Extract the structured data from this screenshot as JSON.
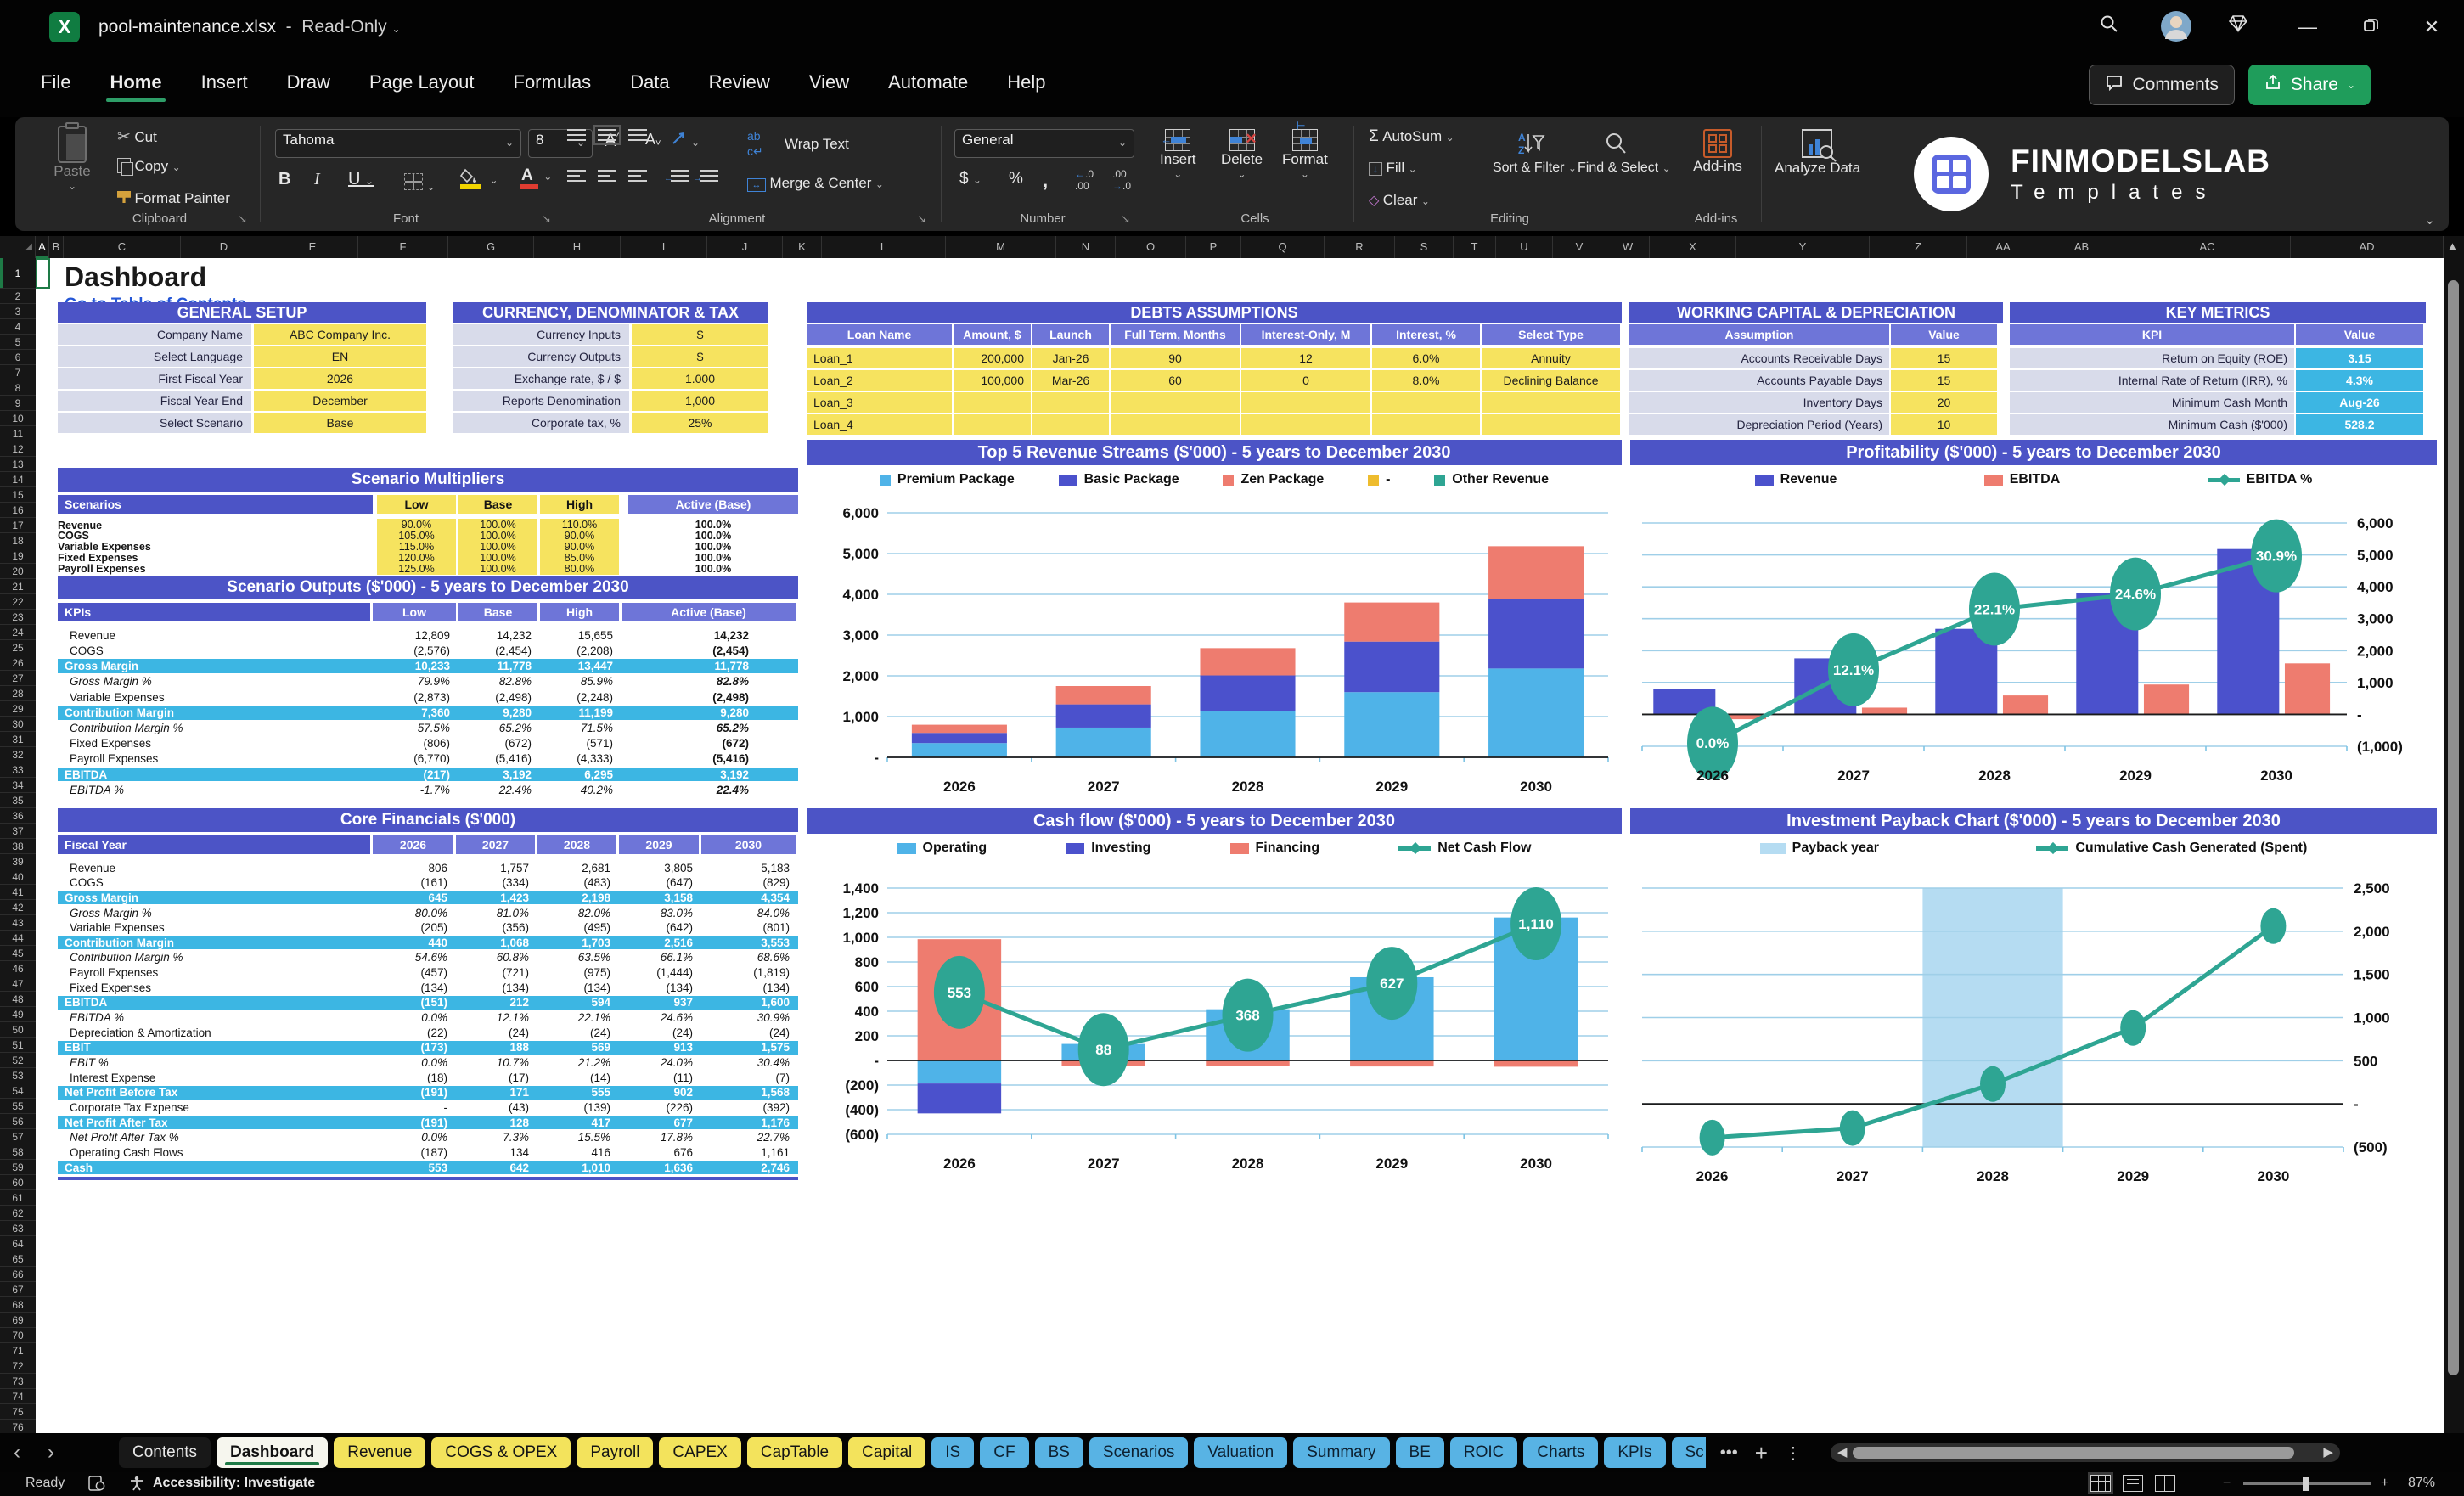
{
  "titlebar": {
    "filename": "pool-maintenance.xlsx",
    "separator": "-",
    "mode": "Read-Only"
  },
  "menubar": {
    "items": [
      "File",
      "Home",
      "Insert",
      "Draw",
      "Page Layout",
      "Formulas",
      "Data",
      "Review",
      "View",
      "Automate",
      "Help"
    ],
    "active": "Home",
    "comments_label": "Comments",
    "share_label": "Share"
  },
  "ribbon": {
    "clipboard": {
      "label": "Clipboard",
      "paste": "Paste",
      "cut": "Cut",
      "copy": "Copy",
      "format_painter": "Format Painter"
    },
    "font": {
      "label": "Font",
      "font_name": "Tahoma",
      "font_size": "8"
    },
    "alignment": {
      "label": "Alignment",
      "wrap_text": "Wrap Text",
      "merge_center": "Merge & Center"
    },
    "number": {
      "label": "Number",
      "format": "General"
    },
    "cells": {
      "label": "Cells",
      "insert": "Insert",
      "delete": "Delete",
      "format": "Format"
    },
    "editing": {
      "label": "Editing",
      "autosum": "AutoSum",
      "fill": "Fill",
      "clear": "Clear",
      "sort_filter": "Sort & Filter",
      "find_select": "Find & Select"
    },
    "addins": {
      "label": "Add-ins",
      "addins": "Add-ins",
      "analyze": "Analyze Data"
    },
    "logo": {
      "line1": "FINMODELSLAB",
      "line2": "Templates"
    }
  },
  "grid": {
    "columns": [
      "A",
      "B",
      "C",
      "D",
      "E",
      "F",
      "G",
      "H",
      "I",
      "J",
      "K",
      "L",
      "M",
      "N",
      "O",
      "P",
      "Q",
      "R",
      "S",
      "T",
      "U",
      "V",
      "W",
      "X",
      "Y",
      "Z",
      "AA",
      "AB",
      "AC",
      "AD"
    ],
    "row_count": 76,
    "sheet_title": "Dashboard",
    "toc_link": "Go to Table of Contents"
  },
  "tables": {
    "general_setup": {
      "title": "GENERAL SETUP",
      "rows": [
        [
          "Company Name",
          "ABC Company Inc."
        ],
        [
          "Select Language",
          "EN"
        ],
        [
          "First Fiscal Year",
          "2026"
        ],
        [
          "Fiscal Year End",
          "December"
        ],
        [
          "Select Scenario",
          "Base"
        ]
      ]
    },
    "currency_tax": {
      "title": "CURRENCY, DENOMINATOR & TAX",
      "rows": [
        [
          "Currency Inputs",
          "$"
        ],
        [
          "Currency Outputs",
          "$"
        ],
        [
          "Exchange rate, $ / $",
          "1.000"
        ],
        [
          "Reports Denomination",
          "1,000"
        ],
        [
          "Corporate tax, %",
          "25%"
        ]
      ]
    },
    "debts": {
      "title": "DEBTS ASSUMPTIONS",
      "headers": [
        "Loan Name",
        "Amount, $",
        "Launch",
        "Full Term, Months",
        "Interest-Only, M",
        "Interest, %",
        "Select Type"
      ],
      "rows": [
        [
          "Loan_1",
          "200,000",
          "Jan-26",
          "90",
          "12",
          "6.0%",
          "Annuity"
        ],
        [
          "Loan_2",
          "100,000",
          "Mar-26",
          "60",
          "0",
          "8.0%",
          "Declining Balance"
        ],
        [
          "Loan_3",
          "",
          "",
          "",
          "",
          "",
          ""
        ],
        [
          "Loan_4",
          "",
          "",
          "",
          "",
          "",
          ""
        ]
      ]
    },
    "working_capital": {
      "title": "WORKING CAPITAL & DEPRECIATION",
      "headers": [
        "Assumption",
        "Value"
      ],
      "rows": [
        [
          "Accounts Receivable Days",
          "15"
        ],
        [
          "Accounts Payable Days",
          "15"
        ],
        [
          "Inventory Days",
          "20"
        ],
        [
          "Depreciation Period (Years)",
          "10"
        ]
      ]
    },
    "key_metrics": {
      "title": "KEY METRICS",
      "headers": [
        "KPI",
        "Value"
      ],
      "rows": [
        [
          "Return on Equity (ROE)",
          "3.15"
        ],
        [
          "Internal Rate of Return (IRR), %",
          "4.3%"
        ],
        [
          "Minimum Cash Month",
          "Aug-26"
        ],
        [
          "Minimum Cash ($'000)",
          "528.2"
        ]
      ]
    },
    "scenario_multipliers": {
      "title": "Scenario Multipliers",
      "headers": [
        "Scenarios",
        "Low",
        "Base",
        "High",
        "Active (Base)"
      ],
      "rows": [
        [
          "Revenue",
          "90.0%",
          "100.0%",
          "110.0%",
          "100.0%"
        ],
        [
          "COGS",
          "105.0%",
          "100.0%",
          "90.0%",
          "100.0%"
        ],
        [
          "Variable Expenses",
          "115.0%",
          "100.0%",
          "90.0%",
          "100.0%"
        ],
        [
          "Fixed Expenses",
          "120.0%",
          "100.0%",
          "85.0%",
          "100.0%"
        ],
        [
          "Payroll Expenses",
          "125.0%",
          "100.0%",
          "80.0%",
          "100.0%"
        ]
      ]
    },
    "scenario_outputs": {
      "title": "Scenario Outputs ($'000) - 5 years to December 2030",
      "headers": [
        "KPIs",
        "Low",
        "Base",
        "High",
        "Active (Base)"
      ],
      "rows": [
        {
          "label": "Revenue",
          "style": "normal",
          "values": [
            "12,809",
            "14,232",
            "15,655",
            "14,232"
          ]
        },
        {
          "label": "COGS",
          "style": "normal",
          "values": [
            "(2,576)",
            "(2,454)",
            "(2,208)",
            "(2,454)"
          ]
        },
        {
          "label": "Gross Margin",
          "style": "highlight",
          "values": [
            "10,233",
            "11,778",
            "13,447",
            "11,778"
          ]
        },
        {
          "label": "Gross Margin %",
          "style": "pct",
          "values": [
            "79.9%",
            "82.8%",
            "85.9%",
            "82.8%"
          ]
        },
        {
          "label": "Variable Expenses",
          "style": "normal",
          "values": [
            "(2,873)",
            "(2,498)",
            "(2,248)",
            "(2,498)"
          ]
        },
        {
          "label": "Contribution Margin",
          "style": "highlight",
          "values": [
            "7,360",
            "9,280",
            "11,199",
            "9,280"
          ]
        },
        {
          "label": "Contribution Margin %",
          "style": "pct",
          "values": [
            "57.5%",
            "65.2%",
            "71.5%",
            "65.2%"
          ]
        },
        {
          "label": "Fixed Expenses",
          "style": "normal",
          "values": [
            "(806)",
            "(672)",
            "(571)",
            "(672)"
          ]
        },
        {
          "label": "Payroll Expenses",
          "style": "normal",
          "values": [
            "(6,770)",
            "(5,416)",
            "(4,333)",
            "(5,416)"
          ]
        },
        {
          "label": "EBITDA",
          "style": "highlight",
          "values": [
            "(217)",
            "3,192",
            "6,295",
            "3,192"
          ]
        },
        {
          "label": "EBITDA %",
          "style": "pct",
          "values": [
            "-1.7%",
            "22.4%",
            "40.2%",
            "22.4%"
          ]
        }
      ]
    },
    "core_financials": {
      "title": "Core Financials ($'000)",
      "headers": [
        "Fiscal Year",
        "2026",
        "2027",
        "2028",
        "2029",
        "2030"
      ],
      "rows": [
        {
          "label": "Revenue",
          "style": "normal",
          "values": [
            "806",
            "1,757",
            "2,681",
            "3,805",
            "5,183"
          ]
        },
        {
          "label": "COGS",
          "style": "normal",
          "values": [
            "(161)",
            "(334)",
            "(483)",
            "(647)",
            "(829)"
          ]
        },
        {
          "label": "Gross Margin",
          "style": "highlight",
          "values": [
            "645",
            "1,423",
            "2,198",
            "3,158",
            "4,354"
          ]
        },
        {
          "label": "Gross Margin %",
          "style": "pct",
          "values": [
            "80.0%",
            "81.0%",
            "82.0%",
            "83.0%",
            "84.0%"
          ]
        },
        {
          "label": "Variable Expenses",
          "style": "normal",
          "values": [
            "(205)",
            "(356)",
            "(495)",
            "(642)",
            "(801)"
          ]
        },
        {
          "label": "Contribution Margin",
          "style": "highlight",
          "values": [
            "440",
            "1,068",
            "1,703",
            "2,516",
            "3,553"
          ]
        },
        {
          "label": "Contribution Margin %",
          "style": "pct",
          "values": [
            "54.6%",
            "60.8%",
            "63.5%",
            "66.1%",
            "68.6%"
          ]
        },
        {
          "label": "Payroll Expenses",
          "style": "normal",
          "values": [
            "(457)",
            "(721)",
            "(975)",
            "(1,444)",
            "(1,819)"
          ]
        },
        {
          "label": "Fixed Expenses",
          "style": "normal",
          "values": [
            "(134)",
            "(134)",
            "(134)",
            "(134)",
            "(134)"
          ]
        },
        {
          "label": "EBITDA",
          "style": "highlight",
          "values": [
            "(151)",
            "212",
            "594",
            "937",
            "1,600"
          ]
        },
        {
          "label": "EBITDA %",
          "style": "pct",
          "values": [
            "0.0%",
            "12.1%",
            "22.1%",
            "24.6%",
            "30.9%"
          ]
        },
        {
          "label": "Depreciation & Amortization",
          "style": "normal",
          "values": [
            "(22)",
            "(24)",
            "(24)",
            "(24)",
            "(24)"
          ]
        },
        {
          "label": "EBIT",
          "style": "highlight",
          "values": [
            "(173)",
            "188",
            "569",
            "913",
            "1,575"
          ]
        },
        {
          "label": "EBIT %",
          "style": "pct",
          "values": [
            "0.0%",
            "10.7%",
            "21.2%",
            "24.0%",
            "30.4%"
          ]
        },
        {
          "label": "Interest Expense",
          "style": "normal",
          "values": [
            "(18)",
            "(17)",
            "(14)",
            "(11)",
            "(7)"
          ]
        },
        {
          "label": "Net Profit Before Tax",
          "style": "highlight",
          "values": [
            "(191)",
            "171",
            "555",
            "902",
            "1,568"
          ]
        },
        {
          "label": "Corporate Tax Expense",
          "style": "normal",
          "values": [
            "-",
            "(43)",
            "(139)",
            "(226)",
            "(392)"
          ]
        },
        {
          "label": "Net Profit After Tax",
          "style": "highlight",
          "values": [
            "(191)",
            "128",
            "417",
            "677",
            "1,176"
          ]
        },
        {
          "label": "Net Profit After Tax %",
          "style": "pct",
          "values": [
            "0.0%",
            "7.3%",
            "15.5%",
            "17.8%",
            "22.7%"
          ]
        },
        {
          "label": "Operating Cash Flows",
          "style": "normal",
          "values": [
            "(187)",
            "134",
            "416",
            "676",
            "1,161"
          ]
        },
        {
          "label": "Cash",
          "style": "highlight",
          "values": [
            "553",
            "642",
            "1,010",
            "1,636",
            "2,746"
          ]
        }
      ]
    }
  },
  "chart_data": [
    {
      "type": "bar",
      "title": "Top 5 Revenue Streams ($'000) - 5 years to December 2030",
      "categories": [
        "2026",
        "2027",
        "2028",
        "2029",
        "2030"
      ],
      "series": [
        {
          "name": "Premium Package",
          "color": "#4fb3e8",
          "values": [
            350,
            730,
            1130,
            1600,
            2180
          ]
        },
        {
          "name": "Basic Package",
          "color": "#4b51cc",
          "values": [
            250,
            570,
            880,
            1240,
            1700
          ]
        },
        {
          "name": "Zen Package",
          "color": "#ee7c6f",
          "values": [
            200,
            450,
            670,
            960,
            1300
          ]
        },
        {
          "name": "-",
          "color": "#eebc2e",
          "values": [
            0,
            0,
            0,
            0,
            0
          ]
        },
        {
          "name": "Other Revenue",
          "color": "#2ea593",
          "values": [
            0,
            0,
            0,
            0,
            0
          ]
        }
      ],
      "stacked": true,
      "ylim": [
        0,
        6000
      ],
      "ystep": 1000,
      "axis_side": "left",
      "grid": true,
      "legend_position": "top"
    },
    {
      "type": "bar",
      "title": "Profitability ($'000) - 5 years to December 2030",
      "categories": [
        "2026",
        "2027",
        "2028",
        "2029",
        "2030"
      ],
      "series": [
        {
          "name": "Revenue",
          "color": "#4b51cc",
          "values": [
            806,
            1757,
            2681,
            3805,
            5183
          ]
        },
        {
          "name": "EBITDA",
          "color": "#ee7c6f",
          "values": [
            -151,
            212,
            594,
            937,
            1600
          ]
        }
      ],
      "line": {
        "name": "EBITDA %",
        "color": "#2ea593",
        "values": [
          0.0,
          12.1,
          22.1,
          24.6,
          30.9
        ],
        "labels": [
          "0.0%",
          "12.1%",
          "22.1%",
          "24.6%",
          "30.9%"
        ]
      },
      "stacked": false,
      "ylim": [
        -1000,
        6000
      ],
      "ystep": 1000,
      "axis_side": "right",
      "grid": true,
      "legend_position": "top"
    },
    {
      "type": "bar",
      "title": "Cash flow ($'000) - 5 years to December 2030",
      "categories": [
        "2026",
        "2027",
        "2028",
        "2029",
        "2030"
      ],
      "series": [
        {
          "name": "Operating",
          "color": "#4fb3e8",
          "values": [
            -187,
            134,
            416,
            676,
            1161
          ]
        },
        {
          "name": "Investing",
          "color": "#4b51cc",
          "values": [
            -243,
            0,
            0,
            0,
            0
          ]
        },
        {
          "name": "Financing",
          "color": "#ee7c6f",
          "values": [
            985,
            -46,
            -48,
            -49,
            -51
          ]
        }
      ],
      "line": {
        "name": "Net Cash Flow",
        "color": "#2ea593",
        "values": [
          553,
          88,
          368,
          627,
          1110
        ],
        "labels": [
          "553",
          "88",
          "368",
          "627",
          "1,110"
        ]
      },
      "stacked": true,
      "ylim": [
        -600,
        1400
      ],
      "ystep": 200,
      "axis_side": "left",
      "grid": true,
      "legend_position": "top"
    },
    {
      "type": "line",
      "title": "Investment Payback Chart ($'000) - 5 years to December 2030",
      "categories": [
        "2026",
        "2027",
        "2028",
        "2029",
        "2030"
      ],
      "band": {
        "name": "Payback year",
        "color": "#b5dcf2",
        "category": "2028"
      },
      "line": {
        "name": "Cumulative Cash Generated (Spent)",
        "color": "#2ea593",
        "values": [
          -390,
          -280,
          230,
          880,
          2060
        ]
      },
      "ylim": [
        -500,
        2500
      ],
      "ystep": 500,
      "axis_side": "right",
      "grid": true,
      "legend_position": "top"
    }
  ],
  "sheet_tabs": {
    "tabs": [
      {
        "label": "Contents",
        "style": "plain"
      },
      {
        "label": "Dashboard",
        "style": "active"
      },
      {
        "label": "Revenue",
        "style": "yellow"
      },
      {
        "label": "COGS & OPEX",
        "style": "yellow"
      },
      {
        "label": "Payroll",
        "style": "yellow"
      },
      {
        "label": "CAPEX",
        "style": "yellow"
      },
      {
        "label": "CapTable",
        "style": "yellow"
      },
      {
        "label": "Capital",
        "style": "yellow"
      },
      {
        "label": "IS",
        "style": "blue"
      },
      {
        "label": "CF",
        "style": "blue"
      },
      {
        "label": "BS",
        "style": "blue"
      },
      {
        "label": "Scenarios",
        "style": "blue"
      },
      {
        "label": "Valuation",
        "style": "blue"
      },
      {
        "label": "Summary",
        "style": "blue"
      },
      {
        "label": "BE",
        "style": "blue"
      },
      {
        "label": "ROIC",
        "style": "blue"
      },
      {
        "label": "Charts",
        "style": "blue"
      },
      {
        "label": "KPIs",
        "style": "blue"
      },
      {
        "label": "Sc",
        "style": "blue"
      }
    ],
    "overflow": "•••",
    "add_sheet": "+",
    "tab_menu": "⋮"
  },
  "status_bar": {
    "ready": "Ready",
    "accessibility": "Accessibility: Investigate",
    "zoom_level": "87%"
  }
}
